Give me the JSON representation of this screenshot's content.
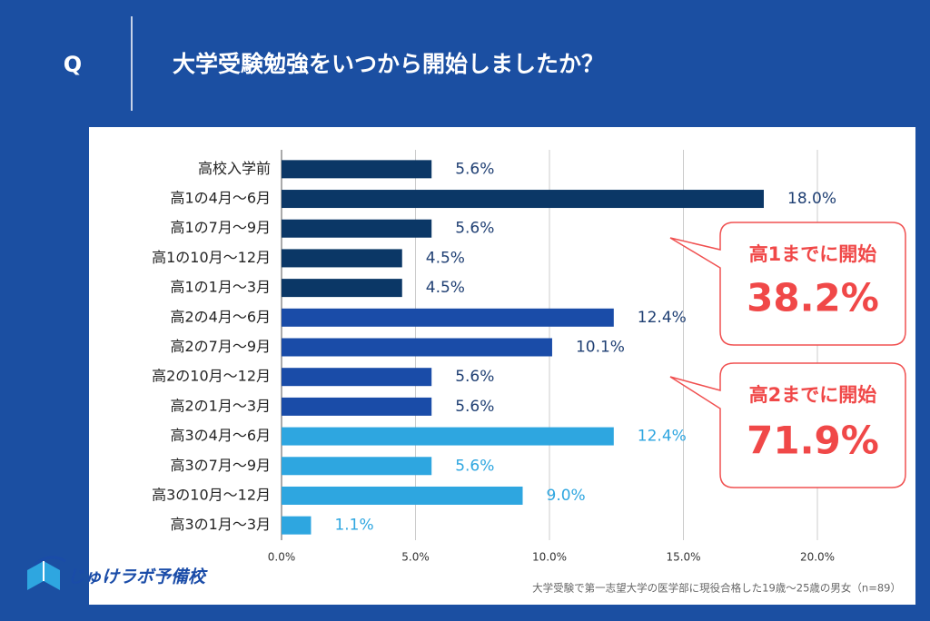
{
  "header": {
    "q": "Q",
    "title": "大学受験勉強をいつから開始しましたか？"
  },
  "chart_data": {
    "type": "bar",
    "orientation": "horizontal",
    "categories": [
      "高校入学前",
      "高1の4月～6月",
      "高1の7月～9月",
      "高1の10月～12月",
      "高1の1月～3月",
      "高2の4月～6月",
      "高2の7月～9月",
      "高2の10月～12月",
      "高2の1月～3月",
      "高3の4月～6月",
      "高3の7月～9月",
      "高3の10月～12月",
      "高3の1月～3月"
    ],
    "values": [
      5.6,
      18.0,
      5.6,
      4.5,
      4.5,
      12.4,
      10.1,
      5.6,
      5.6,
      12.4,
      5.6,
      9.0,
      1.1
    ],
    "value_labels": [
      "5.6%",
      "18.0%",
      "5.6%",
      "4.5%",
      "4.5%",
      "12.4%",
      "10.1%",
      "5.6%",
      "5.6%",
      "12.4%",
      "5.6%",
      "9.0%",
      "1.1%"
    ],
    "colors": [
      "#0b3766",
      "#0b3766",
      "#0b3766",
      "#0b3766",
      "#0b3766",
      "#1a4ca8",
      "#1a4ca8",
      "#1a4ca8",
      "#1a4ca8",
      "#2ea6e0",
      "#2ea6e0",
      "#2ea6e0",
      "#2ea6e0"
    ],
    "xlim": [
      0,
      20
    ],
    "xticks": [
      {
        "value": 0,
        "label": "0.0%"
      },
      {
        "value": 5,
        "label": "5.0%"
      },
      {
        "value": 10,
        "label": "10.0%"
      },
      {
        "value": 15,
        "label": "15.0%"
      },
      {
        "value": 20,
        "label": "20.0%"
      }
    ],
    "grid": true,
    "annotations": [
      {
        "label": "高1までに開始",
        "value_label": "38.2%"
      },
      {
        "label": "高2までに開始",
        "value_label": "71.9%"
      }
    ]
  },
  "footer": {
    "logo": "じゅけラボ予備校",
    "note": "大学受験で第一志望大学の医学部に現役合格した19歳～25歳の男女（n=89）"
  }
}
